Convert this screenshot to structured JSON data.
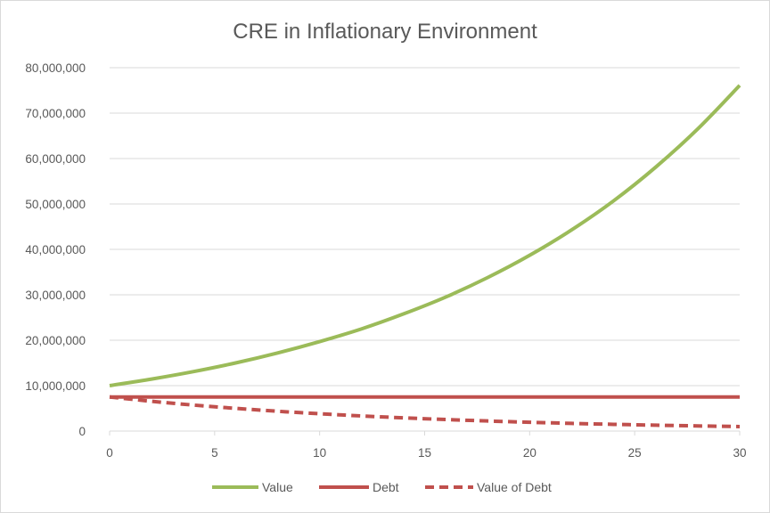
{
  "chart_data": {
    "type": "line",
    "title": "CRE in Inflationary Environment",
    "xlabel": "",
    "ylabel": "",
    "x": [
      0,
      2,
      4,
      6,
      8,
      10,
      12,
      14,
      16,
      18,
      20,
      22,
      24,
      26,
      28,
      30
    ],
    "xlim": [
      0,
      30
    ],
    "ylim": [
      0,
      80000000
    ],
    "x_ticks": [
      "0",
      "5",
      "10",
      "15",
      "20",
      "25",
      "30"
    ],
    "x_tick_values": [
      0,
      5,
      10,
      15,
      20,
      25,
      30
    ],
    "y_ticks": [
      "0",
      "10,000,000",
      "20,000,000",
      "30,000,000",
      "40,000,000",
      "50,000,000",
      "60,000,000",
      "70,000,000",
      "80,000,000"
    ],
    "y_tick_values": [
      0,
      10000000,
      20000000,
      30000000,
      40000000,
      50000000,
      60000000,
      70000000,
      80000000
    ],
    "grid": "horizontal",
    "legend_position": "bottom",
    "series": [
      {
        "name": "Value",
        "color": "#9bbb59",
        "style": "solid",
        "values": [
          10000000,
          11450000,
          13100000,
          15000000,
          17200000,
          19700000,
          22500000,
          25800000,
          29500000,
          33800000,
          38700000,
          44300000,
          50700000,
          58100000,
          66500000,
          76100000
        ]
      },
      {
        "name": "Debt",
        "color": "#c0504d",
        "style": "solid",
        "values": [
          7500000,
          7500000,
          7500000,
          7500000,
          7500000,
          7500000,
          7500000,
          7500000,
          7500000,
          7500000,
          7500000,
          7500000,
          7500000,
          7500000,
          7500000,
          7500000
        ]
      },
      {
        "name": "Value of Debt",
        "color": "#c0504d",
        "style": "dashed",
        "values": [
          7500000,
          6550000,
          5720000,
          5000000,
          4360000,
          3810000,
          3330000,
          2910000,
          2540000,
          2220000,
          1940000,
          1690000,
          1480000,
          1290000,
          1130000,
          990000
        ]
      }
    ]
  }
}
